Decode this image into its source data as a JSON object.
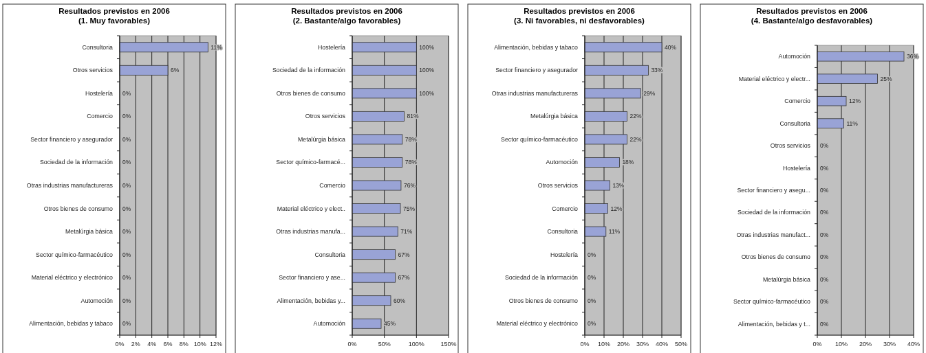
{
  "chart_data": [
    {
      "type": "bar",
      "orientation": "horizontal",
      "title": "Resultados previstos en 2006",
      "subtitle": "(1. Muy favorables)",
      "categories": [
        "Consultoria",
        "Otros servicios",
        "Hostelería",
        "Comercio",
        "Sector financiero y asegurador",
        "Sociedad de la información",
        "Otras industrias manufactureras",
        "Otros bienes de consumo",
        "Metalúrgia básica",
        "Sector químico-farmacéutico",
        "Material eléctrico y electrónico",
        "Automoción",
        "Alimentación, bebidas y tabaco"
      ],
      "values": [
        11,
        6,
        0,
        0,
        0,
        0,
        0,
        0,
        0,
        0,
        0,
        0,
        0
      ],
      "value_labels": [
        "11%",
        "6%",
        "0%",
        "0%",
        "0%",
        "0%",
        "0%",
        "0%",
        "0%",
        "0%",
        "0%",
        "0%",
        "0%"
      ],
      "color": "#99a3d6",
      "xlim": [
        0,
        12
      ],
      "xticks": [
        {
          "value": 0,
          "label": "0%"
        },
        {
          "value": 2,
          "label": "2%"
        },
        {
          "value": 4,
          "label": "4%"
        },
        {
          "value": 6,
          "label": "6%"
        },
        {
          "value": 8,
          "label": "8%"
        },
        {
          "value": 10,
          "label": "10%"
        },
        {
          "value": 12,
          "label": "12%"
        }
      ],
      "grid": "x"
    },
    {
      "type": "bar",
      "orientation": "horizontal",
      "title": "Resultados previstos en 2006",
      "subtitle": "(2. Bastante/algo favorables)",
      "categories": [
        "Hostelería",
        "Sociedad de la información",
        "Otros bienes de consumo",
        "Otros servicios",
        "Metalúrgia básica",
        "Sector químico-farmacé...",
        "Comercio",
        "Material eléctrico y elect..",
        "Otras industrias manufa...",
        "Consultoria",
        "Sector financiero y ase...",
        "Alimentación, bebidas y...",
        "Automoción"
      ],
      "values": [
        100,
        100,
        100,
        81,
        78,
        78,
        76,
        75,
        71,
        67,
        67,
        60,
        45
      ],
      "value_labels": [
        "100%",
        "100%",
        "100%",
        "81%",
        "78%",
        "78%",
        "76%",
        "75%",
        "71%",
        "67%",
        "67%",
        "60%",
        "45%"
      ],
      "color": "#99a3d6",
      "xlim": [
        0,
        150
      ],
      "xticks": [
        {
          "value": 0,
          "label": "0%"
        },
        {
          "value": 50,
          "label": "50%"
        },
        {
          "value": 100,
          "label": "100%"
        },
        {
          "value": 150,
          "label": "150%"
        }
      ],
      "grid": "x"
    },
    {
      "type": "bar",
      "orientation": "horizontal",
      "title": "Resultados previstos en 2006",
      "subtitle": "(3. Ni favorables, ni desfavorables)",
      "categories": [
        "Alimentación, bebidas y tabaco",
        "Sector financiero y asegurador",
        "Otras industrias manufactureras",
        "Metalúrgia básica",
        "Sector químico-farmacéutico",
        "Automoción",
        "Otros servicios",
        "Comercio",
        "Consultoria",
        "Hostelería",
        "Sociedad de la información",
        "Otros bienes de consumo",
        "Material eléctrico y electrónico"
      ],
      "values": [
        40,
        33,
        29,
        22,
        22,
        18,
        13,
        12,
        11,
        0,
        0,
        0,
        0
      ],
      "value_labels": [
        "40%",
        "33%",
        "29%",
        "22%",
        "22%",
        "18%",
        "13%",
        "12%",
        "11%",
        "0%",
        "0%",
        "0%",
        "0%"
      ],
      "color": "#99a3d6",
      "xlim": [
        0,
        50
      ],
      "xticks": [
        {
          "value": 0,
          "label": "0%"
        },
        {
          "value": 10,
          "label": "10%"
        },
        {
          "value": 20,
          "label": "20%"
        },
        {
          "value": 30,
          "label": "30%"
        },
        {
          "value": 40,
          "label": "40%"
        },
        {
          "value": 50,
          "label": "50%"
        }
      ],
      "grid": "x"
    },
    {
      "type": "bar",
      "orientation": "horizontal",
      "title": "Resultados previstos en 2006",
      "subtitle": "(4. Bastante/algo desfavorables)",
      "categories": [
        "Automoción",
        "Material eléctrico y electr...",
        "Comercio",
        "Consultoria",
        "Otros servicios",
        "Hostelería",
        "Sector financiero y asegu...",
        "Sociedad de la información",
        "Otras industrias manufact...",
        "Otros bienes de consumo",
        "Metalúrgia básica",
        "Sector químico-farmacéutico",
        "Alimentación, bebidas y t..."
      ],
      "values": [
        36,
        25,
        12,
        11,
        0,
        0,
        0,
        0,
        0,
        0,
        0,
        0,
        0
      ],
      "value_labels": [
        "36%",
        "25%",
        "12%",
        "11%",
        "0%",
        "0%",
        "0%",
        "0%",
        "0%",
        "0%",
        "0%",
        "0%",
        "0%"
      ],
      "color": "#99a3d6",
      "xlim": [
        0,
        40
      ],
      "xticks": [
        {
          "value": 0,
          "label": "0%"
        },
        {
          "value": 10,
          "label": "10%"
        },
        {
          "value": 20,
          "label": "20%"
        },
        {
          "value": 30,
          "label": "30%"
        },
        {
          "value": 40,
          "label": "40%"
        }
      ],
      "grid": "x"
    }
  ]
}
